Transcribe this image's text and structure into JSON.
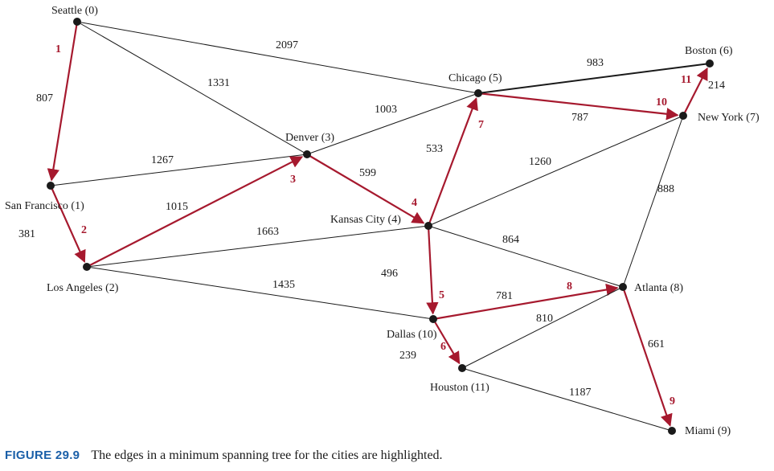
{
  "caption": {
    "figure_label": "FIGURE 29.9",
    "text": "The edges in a minimum spanning tree for the cities are highlighted."
  },
  "colors": {
    "mst": "#a6192e",
    "edge": "#1a1a1a",
    "figure_label": "#1a5fa8"
  },
  "cities": [
    {
      "id": 0,
      "name": "Seattle (0)"
    },
    {
      "id": 1,
      "name": "San Francisco (1)"
    },
    {
      "id": 2,
      "name": "Los Angeles (2)"
    },
    {
      "id": 3,
      "name": "Denver (3)"
    },
    {
      "id": 4,
      "name": "Kansas City (4)"
    },
    {
      "id": 5,
      "name": "Chicago (5)"
    },
    {
      "id": 6,
      "name": "Boston (6)"
    },
    {
      "id": 7,
      "name": "New York (7)"
    },
    {
      "id": 8,
      "name": "Atlanta (8)"
    },
    {
      "id": 9,
      "name": "Miami (9)"
    },
    {
      "id": 10,
      "name": "Dallas (10)"
    },
    {
      "id": 11,
      "name": "Houston (11)"
    }
  ],
  "edges": [
    {
      "from": 0,
      "to": 1,
      "weight": "807",
      "mst": true,
      "order": "1"
    },
    {
      "from": 0,
      "to": 3,
      "weight": "1331",
      "mst": false
    },
    {
      "from": 0,
      "to": 5,
      "weight": "2097",
      "mst": false
    },
    {
      "from": 1,
      "to": 2,
      "weight": "381",
      "mst": true,
      "order": "2"
    },
    {
      "from": 1,
      "to": 3,
      "weight": "1267",
      "mst": false
    },
    {
      "from": 2,
      "to": 3,
      "weight": "1015",
      "mst": true,
      "order": "3"
    },
    {
      "from": 2,
      "to": 4,
      "weight": "1663",
      "mst": false
    },
    {
      "from": 2,
      "to": 10,
      "weight": "1435",
      "mst": false
    },
    {
      "from": 3,
      "to": 4,
      "weight": "599",
      "mst": true,
      "order": "4"
    },
    {
      "from": 3,
      "to": 5,
      "weight": "1003",
      "mst": false
    },
    {
      "from": 4,
      "to": 10,
      "weight": "496",
      "mst": true,
      "order": "5"
    },
    {
      "from": 10,
      "to": 11,
      "weight": "239",
      "mst": true,
      "order": "6"
    },
    {
      "from": 4,
      "to": 5,
      "weight": "533",
      "mst": true,
      "order": "7"
    },
    {
      "from": 10,
      "to": 8,
      "weight": "781",
      "mst": true,
      "order": "8"
    },
    {
      "from": 8,
      "to": 9,
      "weight": "661",
      "mst": true,
      "order": "9"
    },
    {
      "from": 5,
      "to": 7,
      "weight": "787",
      "mst": true,
      "order": "10"
    },
    {
      "from": 7,
      "to": 6,
      "weight": "214",
      "mst": true,
      "order": "11"
    },
    {
      "from": 4,
      "to": 7,
      "weight": "1260",
      "mst": false
    },
    {
      "from": 4,
      "to": 8,
      "weight": "864",
      "mst": false
    },
    {
      "from": 5,
      "to": 6,
      "weight": "983",
      "mst": false
    },
    {
      "from": 7,
      "to": 8,
      "weight": "888",
      "mst": false
    },
    {
      "from": 11,
      "to": 8,
      "weight": "810",
      "mst": false
    },
    {
      "from": 11,
      "to": 9,
      "weight": "1187",
      "mst": false
    }
  ]
}
